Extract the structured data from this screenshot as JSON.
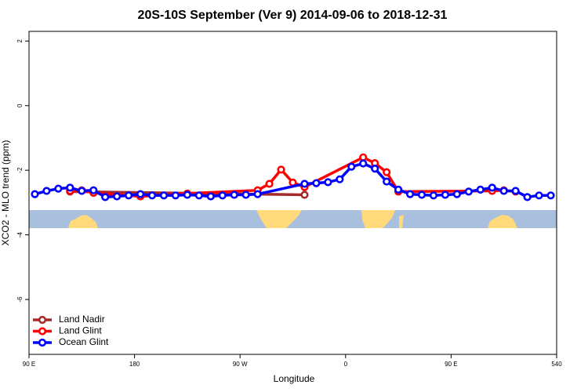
{
  "chart_data": {
    "type": "line",
    "title": "20S-10S September (Ver 9)   2014-09-06 to 2018-12-31",
    "x_label": "Longitude",
    "y_label": "XCO2 - MLO trend (ppm)",
    "xlim": [
      90,
      540
    ],
    "ylim": [
      -7.7,
      2.3
    ],
    "xticks": [
      {
        "value": 90,
        "label": "90 E"
      },
      180,
      {
        "value": 270,
        "label": "90 W"
      },
      {
        "value": 360,
        "label": "0"
      },
      {
        "value": 450,
        "label": "90 E"
      },
      540
    ],
    "yticks": [
      2,
      0,
      -2,
      -4,
      -6
    ],
    "legend": "bottom-left",
    "series": [
      {
        "name": "Land Nadir",
        "color": "#a52a2a",
        "x": [
          125,
          325
        ],
        "values": [
          -2.66,
          -2.76
        ]
      },
      {
        "name": "Land Glint",
        "color": "#ff0000",
        "x": [
          125,
          135,
          145,
          185,
          225,
          285,
          295,
          305,
          315,
          325,
          375,
          385,
          395,
          405,
          485,
          495,
          505
        ],
        "values": [
          -2.64,
          -2.62,
          -2.7,
          -2.81,
          -2.72,
          -2.62,
          -2.42,
          -1.98,
          -2.38,
          -2.52,
          -1.6,
          -1.78,
          -2.06,
          -2.66,
          -2.64,
          -2.62,
          -2.66
        ]
      },
      {
        "name": "Ocean Glint",
        "color": "#0000ff",
        "x": [
          95,
          105,
          115,
          125,
          135,
          145,
          155,
          165,
          175,
          185,
          195,
          205,
          215,
          225,
          235,
          245,
          255,
          265,
          275,
          285,
          325,
          335,
          345,
          355,
          365,
          375,
          385,
          395,
          405,
          415,
          425,
          435,
          445,
          455,
          465,
          475,
          485,
          495,
          505,
          515,
          525,
          535
        ],
        "values": [
          -2.74,
          -2.64,
          -2.57,
          -2.54,
          -2.64,
          -2.62,
          -2.83,
          -2.81,
          -2.78,
          -2.74,
          -2.78,
          -2.78,
          -2.78,
          -2.76,
          -2.78,
          -2.81,
          -2.78,
          -2.76,
          -2.76,
          -2.74,
          -2.42,
          -2.4,
          -2.37,
          -2.28,
          -1.89,
          -1.79,
          -1.95,
          -2.35,
          -2.6,
          -2.74,
          -2.76,
          -2.78,
          -2.76,
          -2.74,
          -2.66,
          -2.6,
          -2.54,
          -2.64,
          -2.64,
          -2.83,
          -2.78,
          -2.78
        ]
      }
    ]
  }
}
